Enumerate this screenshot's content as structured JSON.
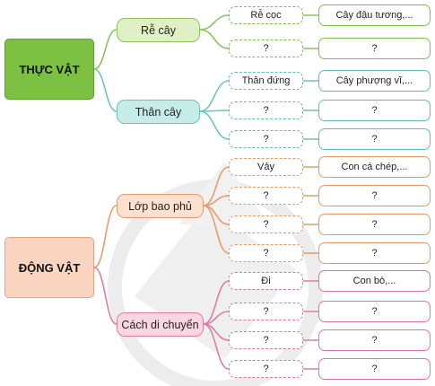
{
  "roots": [
    {
      "label": "THỰC VẬT",
      "color": "#7cc142",
      "categories": [
        {
          "label": "Rễ cây",
          "color": "#8fc25a",
          "items": [
            {
              "name": "Rễ cọc",
              "example": "Cây đậu tương,..."
            },
            {
              "name": "?",
              "example": "?"
            }
          ]
        },
        {
          "label": "Thân cây",
          "color": "#6cc4bd",
          "items": [
            {
              "name": "Thân đứng",
              "example": "Cây phượng vĩ,..."
            },
            {
              "name": "?",
              "example": "?"
            },
            {
              "name": "?",
              "example": "?"
            }
          ]
        }
      ]
    },
    {
      "label": "ĐỘNG VẬT",
      "color": "#f9d4c0",
      "categories": [
        {
          "label": "Lớp bao phủ",
          "color": "#e99a6e",
          "items": [
            {
              "name": "Vảy",
              "example": "Con cá chép,..."
            },
            {
              "name": "?",
              "example": "?"
            },
            {
              "name": "?",
              "example": "?"
            },
            {
              "name": "?",
              "example": "?"
            }
          ]
        },
        {
          "label": "Cách di chuyển",
          "color": "#dd7ea1",
          "items": [
            {
              "name": "Đi",
              "example": "Con bò,..."
            },
            {
              "name": "?",
              "example": "?"
            },
            {
              "name": "?",
              "example": "?"
            },
            {
              "name": "?",
              "example": "?"
            }
          ]
        }
      ]
    }
  ]
}
